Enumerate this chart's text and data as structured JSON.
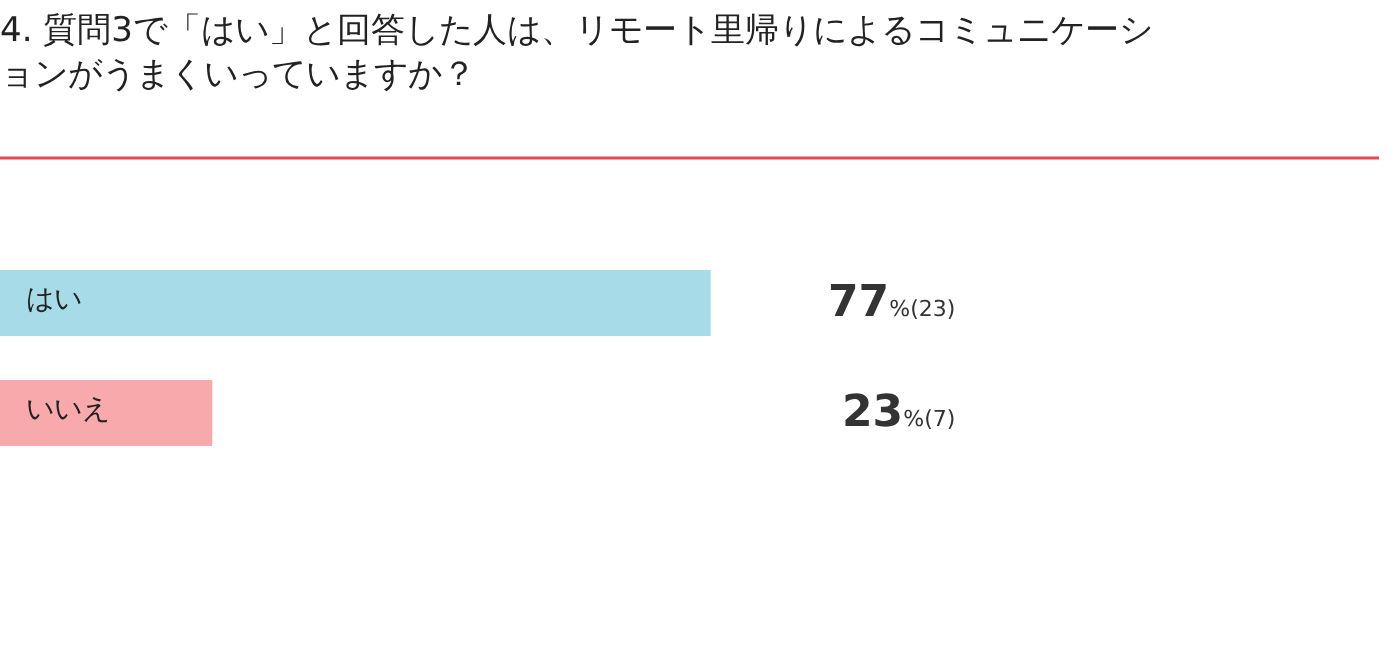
{
  "chart_data": {
    "type": "bar",
    "orientation": "horizontal",
    "title": "4. 質問3で「はい」と回答した人は、リモート里帰りによるコミュニケーションがうまくいっていますか？",
    "categories": [
      "はい",
      "いいえ"
    ],
    "values": [
      77,
      23
    ],
    "colors": [
      "#a8dbe8",
      "#f7a9ac"
    ],
    "value_labels": [
      "77%(23)",
      "23%(7)"
    ]
  }
}
